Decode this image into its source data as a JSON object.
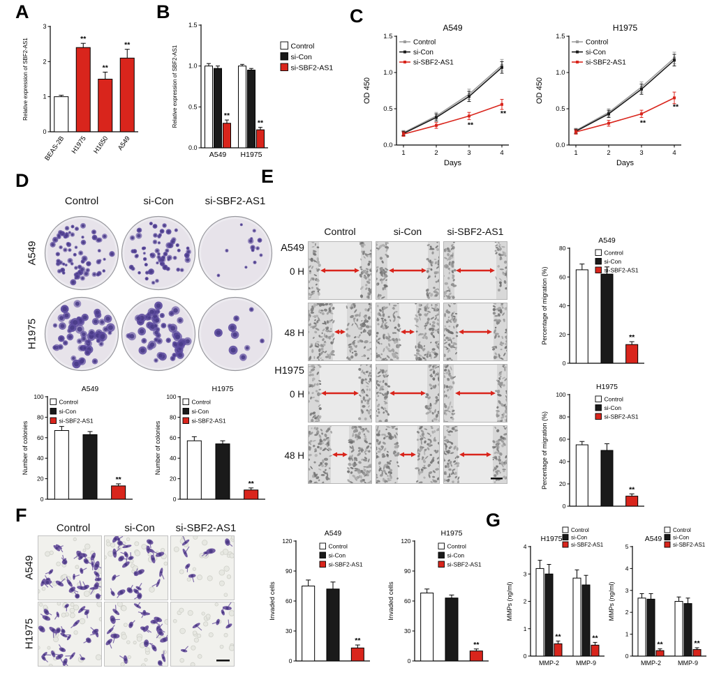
{
  "colors": {
    "red": "#d9251c",
    "black": "#1a1a1a",
    "gray_line": "#9c9c9c",
    "colony_purple": "#5c4a9e",
    "cell_purple": "#6a539e"
  },
  "figure": {
    "panels": {
      "A": {
        "label": "A"
      },
      "B": {
        "label": "B"
      },
      "C": {
        "label": "C"
      },
      "D": {
        "label": "D",
        "col_headers": [
          "Control",
          "si-Con",
          "si-SBF2-AS1"
        ],
        "row_labels": [
          "A549",
          "H1975"
        ],
        "colony_counts": [
          [
            67,
            63,
            13
          ],
          [
            57,
            54,
            9
          ]
        ]
      },
      "E": {
        "label": "E",
        "col_headers": [
          "Control",
          "si-Con",
          "si-SBF2-AS1"
        ],
        "row_labels": [
          "A549",
          "0 H",
          "48 H",
          "H1975",
          "0 H",
          "48 H"
        ],
        "gap_widths": [
          [
            60,
            58,
            60
          ],
          [
            20,
            24,
            52
          ],
          [
            58,
            56,
            62
          ],
          [
            26,
            28,
            50
          ]
        ]
      },
      "F": {
        "label": "F",
        "col_headers": [
          "Control",
          "si-Con",
          "si-SBF2-AS1"
        ],
        "row_labels": [
          "A549",
          "H1975"
        ],
        "cell_counts": [
          [
            28,
            26,
            7
          ],
          [
            24,
            22,
            6
          ]
        ]
      },
      "G": {
        "label": "G"
      }
    }
  },
  "chart_data": [
    {
      "id": "A-sbf2as1-expression",
      "type": "bar",
      "ylabel": "Relative expression of SBF2-AS1",
      "ylim": [
        0,
        3
      ],
      "yticks": [
        "0",
        "1",
        "2",
        "3"
      ],
      "bars": [
        {
          "label": "BEAS-2B",
          "value": 1.0,
          "error": 0.04,
          "color": "white"
        },
        {
          "label": "H1975",
          "value": 2.4,
          "error": 0.12,
          "color": "red",
          "sig": "**"
        },
        {
          "label": "H1650",
          "value": 1.5,
          "error": 0.2,
          "color": "red",
          "sig": "**"
        },
        {
          "label": "A549",
          "value": 2.1,
          "error": 0.25,
          "color": "red",
          "sig": "**"
        }
      ]
    },
    {
      "id": "B-knockdown-efficiency",
      "type": "bar",
      "ylabel": "Relative expression of SBF2-AS1",
      "ylim": [
        0,
        1.5
      ],
      "yticks": [
        "0.0",
        "0.5",
        "1.0",
        "1.5"
      ],
      "categories": [
        "A549",
        "H1975"
      ],
      "series": [
        {
          "name": "Control",
          "color": "white",
          "values": [
            1.0,
            1.0
          ],
          "errors": [
            0.03,
            0.02
          ]
        },
        {
          "name": "si-Con",
          "color": "black",
          "values": [
            0.97,
            0.95
          ],
          "errors": [
            0.03,
            0.02
          ]
        },
        {
          "name": "si-SBF2-AS1",
          "color": "red",
          "values": [
            0.3,
            0.22
          ],
          "errors": [
            0.04,
            0.03
          ],
          "sig": [
            "**",
            "**"
          ]
        }
      ]
    },
    {
      "id": "C-cck8-A549",
      "type": "line",
      "title": "A549",
      "xlabel": "Days",
      "ylabel": "OD 450",
      "x": [
        1,
        2,
        3,
        4
      ],
      "xticks": [
        "1",
        "2",
        "3",
        "4"
      ],
      "ylim": [
        0,
        1.5
      ],
      "yticks": [
        "0.0",
        "0.5",
        "1.0",
        "1.5"
      ],
      "series": [
        {
          "name": "Control",
          "color": "gray",
          "values": [
            0.17,
            0.4,
            0.7,
            1.1
          ],
          "errors": [
            0.03,
            0.05,
            0.07,
            0.08
          ]
        },
        {
          "name": "si-Con",
          "color": "black",
          "values": [
            0.16,
            0.38,
            0.67,
            1.07
          ],
          "errors": [
            0.03,
            0.05,
            0.07,
            0.08
          ]
        },
        {
          "name": "si-SBF2-AS1",
          "color": "red",
          "values": [
            0.15,
            0.27,
            0.4,
            0.56
          ],
          "errors": [
            0.03,
            0.04,
            0.05,
            0.07
          ],
          "sig": [
            "",
            "",
            "**",
            "**"
          ]
        }
      ]
    },
    {
      "id": "C-cck8-H1975",
      "type": "line",
      "title": "H1975",
      "xlabel": "Days",
      "ylabel": "OD 450",
      "x": [
        1,
        2,
        3,
        4
      ],
      "xticks": [
        "1",
        "2",
        "3",
        "4"
      ],
      "ylim": [
        0,
        1.5
      ],
      "yticks": [
        "0.0",
        "0.5",
        "1.0",
        "1.5"
      ],
      "series": [
        {
          "name": "Control",
          "color": "gray",
          "values": [
            0.2,
            0.45,
            0.8,
            1.2
          ],
          "errors": [
            0.03,
            0.05,
            0.07,
            0.08
          ]
        },
        {
          "name": "si-Con",
          "color": "black",
          "values": [
            0.19,
            0.43,
            0.77,
            1.17
          ],
          "errors": [
            0.03,
            0.05,
            0.07,
            0.08
          ]
        },
        {
          "name": "si-SBF2-AS1",
          "color": "red",
          "values": [
            0.18,
            0.3,
            0.43,
            0.65
          ],
          "errors": [
            0.03,
            0.04,
            0.05,
            0.08
          ],
          "sig": [
            "",
            "",
            "**",
            "**"
          ]
        }
      ]
    },
    {
      "id": "D-colonies-A549",
      "type": "bar",
      "title": "A549",
      "ylabel": "Number of colonies",
      "ylim": [
        0,
        100
      ],
      "yticks": [
        "0",
        "20",
        "40",
        "60",
        "80",
        "100"
      ],
      "bars": [
        {
          "name": "Control",
          "value": 67,
          "error": 4,
          "color": "white"
        },
        {
          "name": "si-Con",
          "value": 63,
          "error": 3,
          "color": "black"
        },
        {
          "name": "si-SBF2-AS1",
          "value": 13,
          "error": 2,
          "color": "red",
          "sig": "**"
        }
      ]
    },
    {
      "id": "D-colonies-H1975",
      "type": "bar",
      "title": "H1975",
      "ylabel": "Number of colonies",
      "ylim": [
        0,
        100
      ],
      "yticks": [
        "0",
        "20",
        "40",
        "60",
        "80",
        "100"
      ],
      "bars": [
        {
          "name": "Control",
          "value": 57,
          "error": 4,
          "color": "white"
        },
        {
          "name": "si-Con",
          "value": 54,
          "error": 3,
          "color": "black"
        },
        {
          "name": "si-SBF2-AS1",
          "value": 9,
          "error": 2,
          "color": "red",
          "sig": "**"
        }
      ]
    },
    {
      "id": "E-migration-A549",
      "type": "bar",
      "title": "A549",
      "ylabel": "Percentage of migration (%)",
      "ylim": [
        0,
        80
      ],
      "yticks": [
        "0",
        "20",
        "40",
        "60",
        "80"
      ],
      "bars": [
        {
          "name": "Control",
          "value": 65,
          "error": 4,
          "color": "white"
        },
        {
          "name": "si-Con",
          "value": 62,
          "error": 5,
          "color": "black"
        },
        {
          "name": "si-SBF2-AS1",
          "value": 13,
          "error": 2,
          "color": "red",
          "sig": "**"
        }
      ]
    },
    {
      "id": "E-migration-H1975",
      "type": "bar",
      "title": "H1975",
      "ylabel": "Percentage of migration (%)",
      "ylim": [
        0,
        100
      ],
      "yticks": [
        "0",
        "20",
        "40",
        "60",
        "80",
        "100"
      ],
      "bars": [
        {
          "name": "Control",
          "value": 55,
          "error": 3,
          "color": "white"
        },
        {
          "name": "si-Con",
          "value": 50,
          "error": 6,
          "color": "black"
        },
        {
          "name": "si-SBF2-AS1",
          "value": 9,
          "error": 2,
          "color": "red",
          "sig": "**"
        }
      ]
    },
    {
      "id": "F-invasion-A549",
      "type": "bar",
      "title": "A549",
      "ylabel": "Invaded cells",
      "ylim": [
        0,
        120
      ],
      "yticks": [
        "0",
        "30",
        "60",
        "90",
        "120"
      ],
      "bars": [
        {
          "name": "Control",
          "value": 75,
          "error": 6,
          "color": "white"
        },
        {
          "name": "si-Con",
          "value": 72,
          "error": 7,
          "color": "black"
        },
        {
          "name": "si-SBF2-AS1",
          "value": 13,
          "error": 3,
          "color": "red",
          "sig": "**"
        }
      ]
    },
    {
      "id": "F-invasion-H1975",
      "type": "bar",
      "title": "H1975",
      "ylabel": "Invaded cells",
      "ylim": [
        0,
        120
      ],
      "yticks": [
        "0",
        "30",
        "60",
        "90",
        "120"
      ],
      "bars": [
        {
          "name": "Control",
          "value": 68,
          "error": 4,
          "color": "white"
        },
        {
          "name": "si-Con",
          "value": 63,
          "error": 3,
          "color": "black"
        },
        {
          "name": "si-SBF2-AS1",
          "value": 10,
          "error": 2,
          "color": "red",
          "sig": "**"
        }
      ]
    },
    {
      "id": "G-mmp-H1975",
      "type": "bar",
      "title": "H1975",
      "ylabel": "MMPs (ng/ml)",
      "ylim": [
        0,
        4
      ],
      "yticks": [
        "0",
        "1",
        "2",
        "3",
        "4"
      ],
      "categories": [
        "MMP-2",
        "MMP-9"
      ],
      "series": [
        {
          "name": "Control",
          "color": "white",
          "values": [
            3.2,
            2.85
          ],
          "errors": [
            0.3,
            0.3
          ]
        },
        {
          "name": "si-Con",
          "color": "black",
          "values": [
            3.0,
            2.6
          ],
          "errors": [
            0.35,
            0.35
          ]
        },
        {
          "name": "si-SBF2-AS1",
          "color": "red",
          "values": [
            0.45,
            0.4
          ],
          "errors": [
            0.1,
            0.1
          ],
          "sig": [
            "**",
            "**"
          ]
        }
      ]
    },
    {
      "id": "G-mmp-A549",
      "type": "bar",
      "title": "A549",
      "ylabel": "MMPs (ng/ml)",
      "ylim": [
        0,
        5
      ],
      "yticks": [
        "0",
        "1",
        "2",
        "3",
        "4",
        "5"
      ],
      "categories": [
        "MMP-2",
        "MMP-9"
      ],
      "series": [
        {
          "name": "Control",
          "color": "white",
          "values": [
            2.65,
            2.5
          ],
          "errors": [
            0.2,
            0.2
          ]
        },
        {
          "name": "si-Con",
          "color": "black",
          "values": [
            2.6,
            2.4
          ],
          "errors": [
            0.25,
            0.25
          ]
        },
        {
          "name": "si-SBF2-AS1",
          "color": "red",
          "values": [
            0.25,
            0.3
          ],
          "errors": [
            0.08,
            0.08
          ],
          "sig": [
            "**",
            "**"
          ]
        }
      ]
    }
  ]
}
